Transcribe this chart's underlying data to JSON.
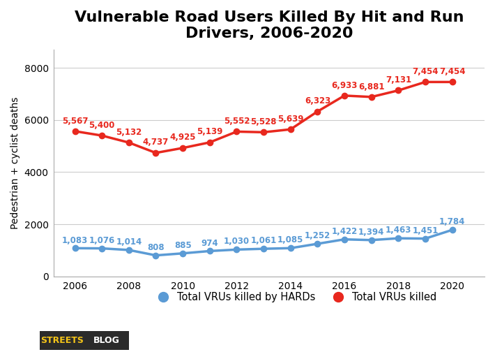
{
  "title_line1": "Vulnerable Road Users Killed By Hit and Run",
  "title_line2": "Drivers, 2006-2020",
  "years": [
    2006,
    2007,
    2008,
    2009,
    2010,
    2011,
    2012,
    2013,
    2014,
    2015,
    2016,
    2017,
    2018,
    2019,
    2020
  ],
  "total_vrus": [
    5567,
    5400,
    5132,
    4737,
    4925,
    5139,
    5552,
    5528,
    5639,
    6323,
    6933,
    6881,
    7131,
    7454,
    7454
  ],
  "hards_vrus": [
    1083,
    1076,
    1014,
    808,
    885,
    974,
    1030,
    1061,
    1085,
    1252,
    1422,
    1394,
    1463,
    1451,
    1784
  ],
  "red_color": "#e8281e",
  "blue_color": "#5b9bd5",
  "ylabel": "Pedestrian + cyclist deaths",
  "ylim": [
    0,
    8700
  ],
  "yticks": [
    0,
    2000,
    4000,
    6000,
    8000
  ],
  "xticks": [
    2006,
    2008,
    2010,
    2012,
    2014,
    2016,
    2018,
    2020
  ],
  "legend_label_blue": "Total VRUs killed by HARDs",
  "legend_label_red": "Total VRUs killed",
  "logo_text_streets": "STREETS",
  "logo_text_blog": "BLOG",
  "bg_color": "#ffffff",
  "grid_color": "#cccccc",
  "title_fontsize": 16,
  "label_fontsize": 10,
  "annot_fontsize": 8.5,
  "red_annot_offsets_x": [
    0,
    0,
    0,
    0,
    0,
    0,
    0,
    0,
    0,
    0,
    0,
    0,
    0,
    0,
    0
  ],
  "red_annot_offsets_y": [
    220,
    220,
    220,
    220,
    220,
    220,
    220,
    220,
    220,
    220,
    220,
    220,
    220,
    220,
    220
  ],
  "blue_annot_offsets_x": [
    0,
    0,
    0,
    0,
    0,
    0,
    0,
    0,
    0,
    0,
    0,
    0,
    0,
    0,
    0
  ],
  "blue_annot_offsets_y": [
    130,
    130,
    130,
    130,
    130,
    130,
    130,
    130,
    130,
    130,
    130,
    130,
    130,
    130,
    130
  ]
}
